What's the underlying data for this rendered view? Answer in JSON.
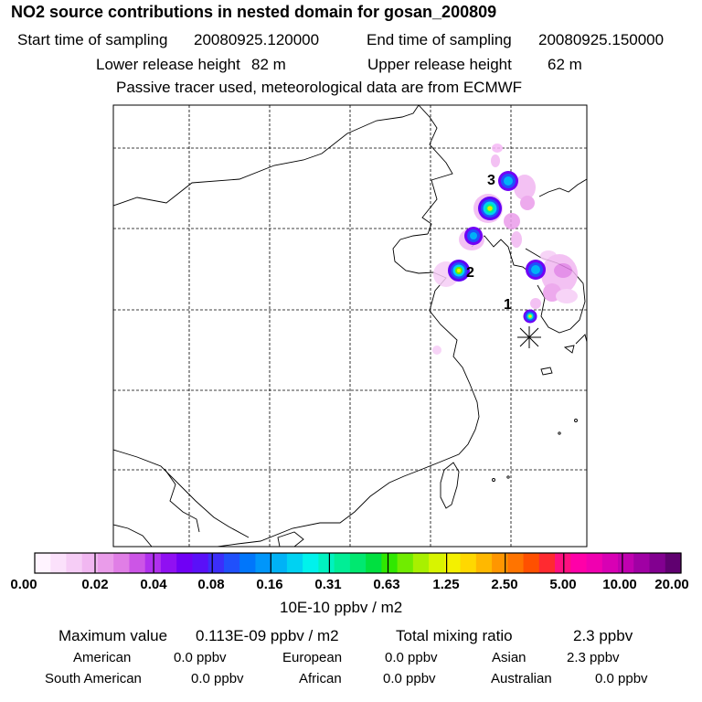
{
  "header": {
    "title": "NO2 source contributions in nested domain for gosan_200809",
    "start_label": "Start time of sampling",
    "start_value": "20080925.120000",
    "end_label": "End time of sampling",
    "end_value": "20080925.150000",
    "lower_label": "Lower release height",
    "lower_value": "82 m",
    "upper_label": "Upper release height",
    "upper_value": "62 m",
    "note": "Passive tracer used, meteorological data are from ECMWF"
  },
  "map": {
    "source_labels": [
      "3",
      "2",
      "1"
    ],
    "receptor_symbol": "star-receptor"
  },
  "colorbar": {
    "labels": [
      "0.00",
      "0.02",
      "0.04",
      "0.08",
      "0.16",
      "0.31",
      "0.63",
      "1.25",
      "2.50",
      "5.00",
      "10.00",
      "20.00"
    ],
    "unit": "10E-10 ppbv / m2",
    "colors": [
      "#fff4ff",
      "#fbe1fb",
      "#f6cdf6",
      "#f1b7f1",
      "#ea9cea",
      "#e07ee6",
      "#cc55e6",
      "#b030ee",
      "#9010f2",
      "#7000f5",
      "#5a10f8",
      "#3c2efa",
      "#2050fb",
      "#0076fb",
      "#0096fa",
      "#00b2f6",
      "#00d2f2",
      "#00f2ec",
      "#00f2c0",
      "#00ee96",
      "#00e870",
      "#00e040",
      "#30e800",
      "#70ec00",
      "#a8f000",
      "#d8f400",
      "#f4f000",
      "#ffd800",
      "#ffb800",
      "#ff9600",
      "#ff7400",
      "#ff5000",
      "#ff2a30",
      "#ff1080",
      "#ff00a8",
      "#f000b0",
      "#d800b4",
      "#c000b0",
      "#a000a4",
      "#820090",
      "#600070"
    ]
  },
  "footer": {
    "max_label": "Maximum value",
    "max_value": "0.113E-09 ppbv / m2",
    "total_label": "Total mixing ratio",
    "total_value": "2.3 ppbv",
    "regions": [
      {
        "name": "American",
        "value": "0.0 ppbv"
      },
      {
        "name": "European",
        "value": "0.0 ppbv"
      },
      {
        "name": "Asian",
        "value": "2.3 ppbv"
      },
      {
        "name": "South American",
        "value": "0.0 ppbv"
      },
      {
        "name": "African",
        "value": "0.0 ppbv"
      },
      {
        "name": "Australian",
        "value": "0.0 ppbv"
      }
    ]
  }
}
